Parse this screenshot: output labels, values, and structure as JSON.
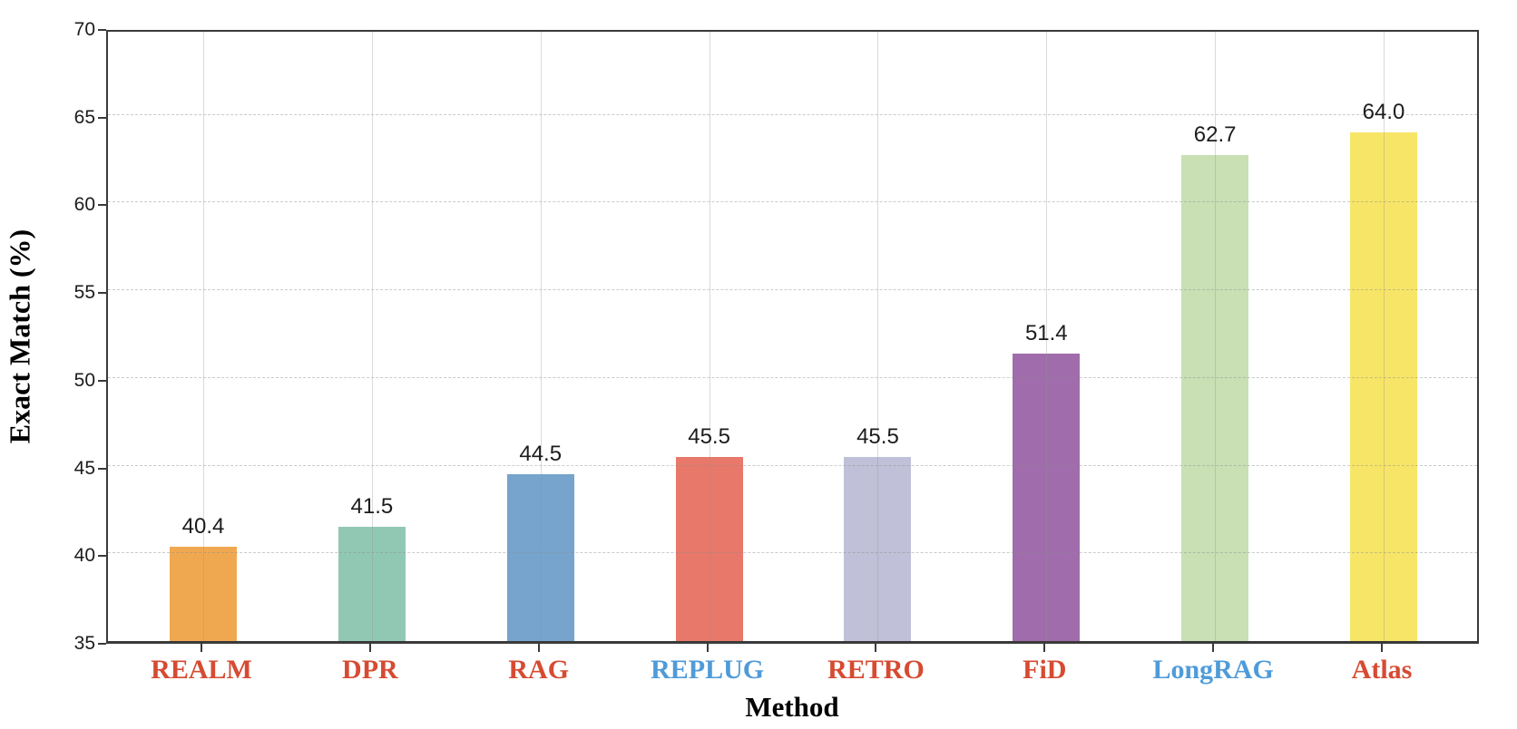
{
  "chart_data": {
    "type": "bar",
    "title": "",
    "xlabel": "Method",
    "ylabel": "Exact Match (%)",
    "categories": [
      "REALM",
      "DPR",
      "RAG",
      "REPLUG",
      "RETRO",
      "FiD",
      "LongRAG",
      "Atlas"
    ],
    "values": [
      40.4,
      41.5,
      44.5,
      45.5,
      45.5,
      51.4,
      62.7,
      64.0
    ],
    "value_labels": [
      "40.4",
      "41.5",
      "44.5",
      "45.5",
      "45.5",
      "51.4",
      "62.7",
      "64.0"
    ],
    "bar_colors": [
      "#f0a850",
      "#91c8b4",
      "#76a4cc",
      "#e7786a",
      "#c0c0d8",
      "#a06cac",
      "#c8e0b4",
      "#f7e567"
    ],
    "category_label_colors": [
      "#d64b32",
      "#d64b32",
      "#d64b32",
      "#4f9bd9",
      "#d64b32",
      "#d64b32",
      "#4f9bd9",
      "#d64b32"
    ],
    "ylim": [
      35,
      70
    ],
    "yticks": [
      35,
      40,
      45,
      50,
      55,
      60,
      65,
      70
    ],
    "grid": {
      "horizontal": "dashed",
      "vertical": "solid",
      "at_category_centers": true
    },
    "legend": "none"
  },
  "style_colors": {
    "axis_spine": "#3a3a3a",
    "red_category_label": "#d64b32",
    "blue_category_label": "#4f9bd9",
    "value_label": "#1c1c1c",
    "background": "#ffffff"
  }
}
